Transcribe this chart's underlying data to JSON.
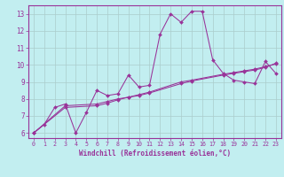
{
  "xlabel": "Windchill (Refroidissement éolien,°C)",
  "xlim": [
    -0.5,
    23.5
  ],
  "ylim": [
    5.7,
    13.5
  ],
  "background_color": "#c2eef0",
  "line_color": "#993399",
  "grid_color": "#aacccc",
  "line1_x": [
    0,
    1,
    2,
    3,
    4,
    5,
    6,
    7,
    8,
    9,
    10,
    11,
    12,
    13,
    14,
    15,
    16,
    17,
    18,
    19,
    20,
    21,
    22,
    23
  ],
  "line1_y": [
    6.0,
    6.5,
    7.5,
    7.7,
    6.0,
    7.2,
    8.5,
    8.2,
    8.3,
    9.4,
    8.7,
    8.8,
    11.8,
    13.0,
    12.5,
    13.15,
    13.15,
    10.3,
    9.5,
    9.1,
    9.0,
    8.9,
    10.2,
    9.5
  ],
  "line2_x": [
    0,
    3,
    6,
    7,
    8,
    9,
    10,
    11,
    14,
    15,
    18,
    19,
    20,
    21,
    22,
    23
  ],
  "line2_y": [
    6.0,
    7.6,
    7.7,
    7.85,
    8.0,
    8.1,
    8.25,
    8.4,
    9.0,
    9.1,
    9.45,
    9.55,
    9.65,
    9.75,
    9.9,
    10.05
  ],
  "line3_x": [
    0,
    3,
    6,
    7,
    8,
    9,
    10,
    11,
    14,
    15,
    18,
    19,
    20,
    21,
    22,
    23
  ],
  "line3_y": [
    6.0,
    7.5,
    7.6,
    7.75,
    7.95,
    8.1,
    8.2,
    8.35,
    8.9,
    9.05,
    9.4,
    9.5,
    9.6,
    9.7,
    9.85,
    10.1
  ],
  "xtick_fontsize": 4.8,
  "ytick_fontsize": 5.5,
  "xlabel_fontsize": 5.5,
  "marker_size": 2.0,
  "line_width": 0.75
}
